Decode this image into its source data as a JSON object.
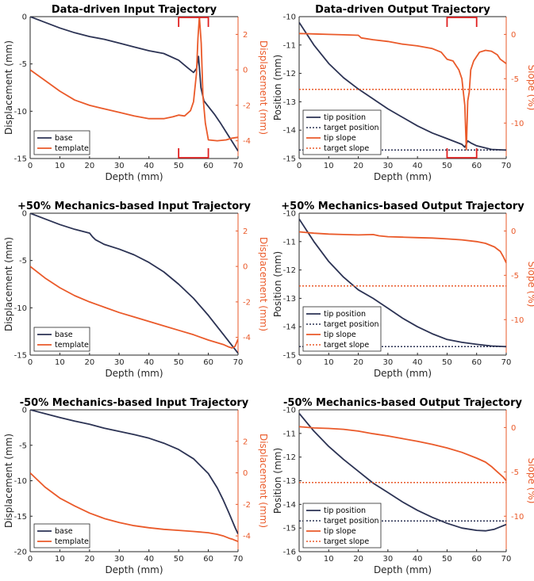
{
  "colors": {
    "base": "#2c3354",
    "template": "#ea5a2a",
    "marker": "#e02020",
    "axis": "#262626"
  },
  "chart_data": [
    {
      "type": "line",
      "dual_axis": true,
      "title": "Data-driven Input Trajectory",
      "xlabel": "Depth (mm)",
      "ylabel": "Displacement (mm)",
      "ylabel_right": "Displacement (mm)",
      "xlim": [
        0,
        70
      ],
      "ylim": [
        -15,
        0
      ],
      "ylim_right": [
        -5,
        3
      ],
      "xticks": [
        0,
        10,
        20,
        30,
        40,
        50,
        60,
        70
      ],
      "yticks": [
        0,
        -5,
        -10,
        -15
      ],
      "yticks_right": [
        2,
        0,
        -2,
        -4
      ],
      "legend_position": "bottom-left",
      "series": [
        {
          "name": "base",
          "axis": "left",
          "style": "solid",
          "x": [
            0,
            5,
            10,
            15,
            20,
            25,
            30,
            35,
            40,
            45,
            50,
            53,
            55,
            56,
            56.7,
            57.5,
            58.5,
            60,
            62,
            64,
            66,
            68,
            69,
            70
          ],
          "y": [
            0,
            -0.6,
            -1.2,
            -1.7,
            -2.1,
            -2.4,
            -2.8,
            -3.2,
            -3.6,
            -3.9,
            -4.6,
            -5.4,
            -5.9,
            -5.5,
            -4.2,
            -7.5,
            -8.9,
            -9.5,
            -10.3,
            -11.2,
            -12.2,
            -13.2,
            -13.7,
            -14.2
          ]
        },
        {
          "name": "template",
          "axis": "right",
          "style": "solid",
          "x": [
            0,
            5,
            10,
            15,
            20,
            25,
            30,
            35,
            40,
            45,
            48,
            50,
            52,
            54,
            55,
            56,
            56.5,
            57,
            57.6,
            58.2,
            59,
            60,
            63,
            66,
            68,
            70
          ],
          "y": [
            0,
            -0.6,
            -1.2,
            -1.7,
            -2.0,
            -2.2,
            -2.4,
            -2.6,
            -2.75,
            -2.75,
            -2.65,
            -2.55,
            -2.6,
            -2.3,
            -1.8,
            -0.2,
            1.8,
            3.0,
            1.5,
            -1.5,
            -3.0,
            -3.95,
            -4.0,
            -3.95,
            -3.85,
            -3.8
          ]
        }
      ],
      "annotation_brackets": [
        50,
        60
      ]
    },
    {
      "type": "line",
      "dual_axis": true,
      "title": "Data-driven Output Trajectory",
      "xlabel": "Depth (mm)",
      "ylabel": "Position (mm)",
      "ylabel_right": "Slope (%)",
      "xlim": [
        0,
        70
      ],
      "ylim": [
        -15,
        -10
      ],
      "ylim_right": [
        -14,
        2
      ],
      "xticks": [
        0,
        10,
        20,
        30,
        40,
        50,
        60,
        70
      ],
      "yticks": [
        -10,
        -11,
        -12,
        -13,
        -14,
        -15
      ],
      "yticks_right": [
        0,
        -5,
        -10
      ],
      "legend_position": "bottom-left",
      "series": [
        {
          "name": "tip position",
          "axis": "left",
          "style": "solid",
          "x": [
            0,
            5,
            10,
            15,
            20,
            25,
            30,
            35,
            40,
            45,
            50,
            55,
            56,
            57,
            58,
            60,
            65,
            70
          ],
          "y": [
            -10.2,
            -11.0,
            -11.65,
            -12.15,
            -12.55,
            -12.9,
            -13.25,
            -13.55,
            -13.85,
            -14.1,
            -14.3,
            -14.5,
            -14.6,
            -14.38,
            -14.45,
            -14.55,
            -14.68,
            -14.7
          ]
        },
        {
          "name": "target position",
          "axis": "left",
          "style": "dotted",
          "x": [
            0,
            70
          ],
          "y": [
            -14.7,
            -14.7
          ]
        },
        {
          "name": "tip slope",
          "axis": "right",
          "style": "solid",
          "x": [
            0,
            5,
            10,
            15,
            20,
            21,
            25,
            30,
            35,
            40,
            45,
            48,
            50,
            52,
            54,
            55,
            56,
            56.5,
            57,
            57.5,
            58,
            59,
            60,
            61,
            63,
            65,
            67,
            68,
            70
          ],
          "y": [
            0.1,
            0.05,
            0,
            -0.05,
            -0.1,
            -0.4,
            -0.6,
            -0.8,
            -1.1,
            -1.3,
            -1.6,
            -2.0,
            -2.8,
            -3.0,
            -4.0,
            -5.0,
            -8.0,
            -13.0,
            -7.5,
            -6.5,
            -4.0,
            -3.0,
            -2.5,
            -2.0,
            -1.8,
            -1.9,
            -2.3,
            -2.8,
            -3.3
          ]
        },
        {
          "name": "target slope",
          "axis": "right",
          "style": "dotted",
          "x": [
            0,
            70
          ],
          "y": [
            -6.2,
            -6.2
          ]
        }
      ],
      "annotation_brackets": [
        50,
        60
      ]
    },
    {
      "type": "line",
      "dual_axis": true,
      "title": "+50% Mechanics-based Input Trajectory",
      "xlabel": "Depth (mm)",
      "ylabel": "Displacement (mm)",
      "ylabel_right": "Displacement (mm)",
      "xlim": [
        0,
        70
      ],
      "ylim": [
        -15,
        0
      ],
      "ylim_right": [
        -5,
        3
      ],
      "xticks": [
        0,
        10,
        20,
        30,
        40,
        50,
        60,
        70
      ],
      "yticks": [
        0,
        -5,
        -10,
        -15
      ],
      "yticks_right": [
        2,
        0,
        -2,
        -4
      ],
      "legend_position": "bottom-left",
      "series": [
        {
          "name": "base",
          "axis": "left",
          "style": "solid",
          "x": [
            0,
            5,
            10,
            15,
            20,
            21,
            22,
            25,
            30,
            35,
            40,
            45,
            50,
            55,
            60,
            65,
            68,
            70
          ],
          "y": [
            0,
            -0.6,
            -1.2,
            -1.7,
            -2.1,
            -2.5,
            -2.8,
            -3.3,
            -3.8,
            -4.4,
            -5.2,
            -6.2,
            -7.5,
            -9.0,
            -10.8,
            -12.8,
            -14.0,
            -14.8
          ]
        },
        {
          "name": "template",
          "axis": "right",
          "style": "solid",
          "x": [
            0,
            5,
            10,
            15,
            20,
            25,
            30,
            35,
            40,
            45,
            50,
            55,
            60,
            65,
            67,
            68,
            69,
            70
          ],
          "y": [
            0,
            -0.65,
            -1.2,
            -1.65,
            -2.0,
            -2.3,
            -2.6,
            -2.85,
            -3.1,
            -3.35,
            -3.6,
            -3.85,
            -4.15,
            -4.4,
            -4.55,
            -4.6,
            -4.5,
            -4.1
          ]
        }
      ]
    },
    {
      "type": "line",
      "dual_axis": true,
      "title": "+50% Mechanics-based Output Trajectory",
      "xlabel": "Depth (mm)",
      "ylabel": "Position (mm)",
      "ylabel_right": "Slope (%)",
      "xlim": [
        0,
        70
      ],
      "ylim": [
        -15,
        -10
      ],
      "ylim_right": [
        -14,
        2
      ],
      "xticks": [
        0,
        10,
        20,
        30,
        40,
        50,
        60,
        70
      ],
      "yticks": [
        -10,
        -11,
        -12,
        -13,
        -14,
        -15
      ],
      "yticks_right": [
        0,
        -5,
        -10
      ],
      "legend_position": "bottom-left",
      "series": [
        {
          "name": "tip position",
          "axis": "left",
          "style": "solid",
          "x": [
            0,
            5,
            10,
            15,
            20,
            25,
            30,
            35,
            40,
            45,
            50,
            55,
            60,
            65,
            70
          ],
          "y": [
            -10.2,
            -11.0,
            -11.7,
            -12.25,
            -12.7,
            -13.0,
            -13.35,
            -13.7,
            -14.0,
            -14.25,
            -14.45,
            -14.55,
            -14.62,
            -14.68,
            -14.7
          ]
        },
        {
          "name": "target position",
          "axis": "left",
          "style": "dotted",
          "x": [
            0,
            70
          ],
          "y": [
            -14.7,
            -14.7
          ]
        },
        {
          "name": "tip slope",
          "axis": "right",
          "style": "solid",
          "x": [
            0,
            5,
            10,
            15,
            20,
            25,
            27,
            30,
            35,
            40,
            45,
            50,
            55,
            60,
            63,
            66,
            68,
            69,
            70
          ],
          "y": [
            -0.1,
            -0.25,
            -0.35,
            -0.4,
            -0.45,
            -0.4,
            -0.55,
            -0.65,
            -0.7,
            -0.75,
            -0.8,
            -0.9,
            -1.0,
            -1.2,
            -1.4,
            -1.8,
            -2.3,
            -2.9,
            -3.6
          ]
        },
        {
          "name": "target slope",
          "axis": "right",
          "style": "dotted",
          "x": [
            0,
            70
          ],
          "y": [
            -6.2,
            -6.2
          ]
        }
      ]
    },
    {
      "type": "line",
      "dual_axis": true,
      "title": "-50% Mechanics-based Input Trajectory",
      "xlabel": "Depth (mm)",
      "ylabel": "Displacement (mm)",
      "ylabel_right": "Displacement (mm)",
      "xlim": [
        0,
        70
      ],
      "ylim": [
        -20,
        0
      ],
      "ylim_right": [
        -5,
        4
      ],
      "xticks": [
        0,
        10,
        20,
        30,
        40,
        50,
        60,
        70
      ],
      "yticks": [
        0,
        -5,
        -10,
        -15,
        -20
      ],
      "yticks_right": [
        2,
        0,
        -2,
        -4
      ],
      "legend_position": "bottom-left",
      "series": [
        {
          "name": "base",
          "axis": "left",
          "style": "solid",
          "x": [
            0,
            5,
            10,
            15,
            20,
            25,
            30,
            35,
            40,
            45,
            50,
            55,
            60,
            63,
            65,
            67,
            69,
            70
          ],
          "y": [
            0,
            -0.55,
            -1.1,
            -1.6,
            -2.05,
            -2.6,
            -3.05,
            -3.5,
            -4.0,
            -4.7,
            -5.6,
            -6.9,
            -9.0,
            -11.0,
            -12.7,
            -14.6,
            -16.6,
            -17.5
          ]
        },
        {
          "name": "template",
          "axis": "right",
          "style": "solid",
          "x": [
            0,
            5,
            10,
            15,
            20,
            25,
            30,
            35,
            40,
            45,
            50,
            55,
            60,
            63,
            65,
            67,
            68,
            69,
            70
          ],
          "y": [
            0,
            -0.9,
            -1.6,
            -2.1,
            -2.55,
            -2.9,
            -3.15,
            -3.35,
            -3.48,
            -3.58,
            -3.65,
            -3.72,
            -3.8,
            -3.9,
            -4.0,
            -4.15,
            -4.2,
            -4.28,
            -4.35
          ]
        }
      ]
    },
    {
      "type": "line",
      "dual_axis": true,
      "title": "-50% Mechanics-based Output Trajectory",
      "xlabel": "Depth (mm)",
      "ylabel": "Position (mm)",
      "ylabel_right": "Slope (%)",
      "xlim": [
        0,
        70
      ],
      "ylim": [
        -16,
        -10
      ],
      "ylim_right": [
        -14,
        2
      ],
      "xticks": [
        0,
        10,
        20,
        30,
        40,
        50,
        60,
        70
      ],
      "yticks": [
        -10,
        -11,
        -12,
        -13,
        -14,
        -15,
        -16
      ],
      "yticks_right": [
        0,
        -5,
        -10
      ],
      "legend_position": "bottom-left",
      "series": [
        {
          "name": "tip position",
          "axis": "left",
          "style": "solid",
          "x": [
            0,
            5,
            10,
            15,
            20,
            25,
            30,
            35,
            40,
            45,
            50,
            55,
            60,
            63,
            66,
            68,
            70
          ],
          "y": [
            -10.15,
            -10.9,
            -11.55,
            -12.1,
            -12.6,
            -13.1,
            -13.5,
            -13.9,
            -14.25,
            -14.55,
            -14.8,
            -15.0,
            -15.1,
            -15.12,
            -15.05,
            -14.95,
            -14.85
          ]
        },
        {
          "name": "target position",
          "axis": "left",
          "style": "dotted",
          "x": [
            0,
            70
          ],
          "y": [
            -14.7,
            -14.7
          ]
        },
        {
          "name": "tip slope",
          "axis": "right",
          "style": "solid",
          "x": [
            0,
            5,
            10,
            15,
            20,
            25,
            30,
            35,
            40,
            45,
            50,
            55,
            60,
            63,
            65,
            67,
            69,
            70
          ],
          "y": [
            0.1,
            -0.05,
            -0.1,
            -0.2,
            -0.4,
            -0.7,
            -0.95,
            -1.25,
            -1.55,
            -1.9,
            -2.3,
            -2.8,
            -3.45,
            -3.9,
            -4.4,
            -5.0,
            -5.6,
            -6.0
          ]
        },
        {
          "name": "target slope",
          "axis": "right",
          "style": "dotted",
          "x": [
            0,
            70
          ],
          "y": [
            -6.2,
            -6.2
          ]
        }
      ]
    }
  ]
}
